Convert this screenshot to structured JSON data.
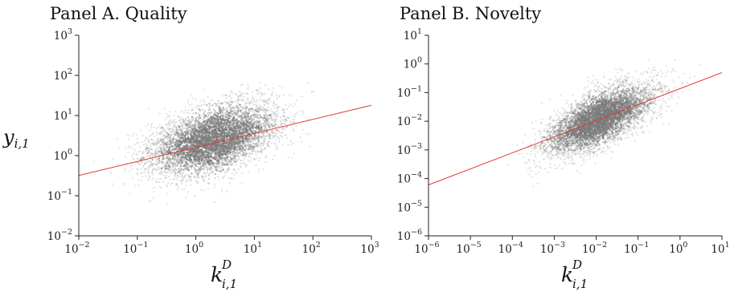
{
  "chart_data": [
    {
      "type": "scatter",
      "title": "Panel A. Quality",
      "ylabel": {
        "base": "y",
        "sub": "i,1"
      },
      "xlabel": {
        "base": "k",
        "sup": "D",
        "sub": "i,1"
      },
      "x_scale": "log",
      "y_scale": "log",
      "xlim": [
        0.01,
        1000
      ],
      "ylim": [
        0.01,
        1000
      ],
      "x_ticks": [
        {
          "base": "10",
          "exp": "−2",
          "value": 0.01
        },
        {
          "base": "10",
          "exp": "−1",
          "value": 0.1
        },
        {
          "base": "10",
          "exp": "0",
          "value": 1
        },
        {
          "base": "10",
          "exp": "1",
          "value": 10
        },
        {
          "base": "10",
          "exp": "2",
          "value": 100
        },
        {
          "base": "10",
          "exp": "3",
          "value": 1000
        }
      ],
      "y_ticks": [
        {
          "base": "10",
          "exp": "−2",
          "value": 0.01
        },
        {
          "base": "10",
          "exp": "−1",
          "value": 0.1
        },
        {
          "base": "10",
          "exp": "0",
          "value": 1
        },
        {
          "base": "10",
          "exp": "1",
          "value": 10
        },
        {
          "base": "10",
          "exp": "2",
          "value": 100
        },
        {
          "base": "10",
          "exp": "3",
          "value": 1000
        }
      ],
      "point_cloud": {
        "center_x": 2.0,
        "center_y": 2.5,
        "spread_log_x": 0.55,
        "spread_log_y": 0.45,
        "correlation": 0.45,
        "color": "#7a7a7a"
      },
      "fit_line": {
        "x": [
          0.01,
          1000
        ],
        "y": [
          0.32,
          18
        ],
        "color": "#e03a2f"
      }
    },
    {
      "type": "scatter",
      "title": "Panel B. Novelty",
      "xlabel": {
        "base": "k",
        "sup": "D",
        "sub": "i,1"
      },
      "x_scale": "log",
      "y_scale": "log",
      "xlim": [
        1e-06,
        10
      ],
      "ylim": [
        1e-06,
        10
      ],
      "x_ticks": [
        {
          "base": "10",
          "exp": "−6",
          "value": 1e-06
        },
        {
          "base": "10",
          "exp": "−5",
          "value": 1e-05
        },
        {
          "base": "10",
          "exp": "−4",
          "value": 0.0001
        },
        {
          "base": "10",
          "exp": "−3",
          "value": 0.001
        },
        {
          "base": "10",
          "exp": "−2",
          "value": 0.01
        },
        {
          "base": "10",
          "exp": "−1",
          "value": 0.1
        },
        {
          "base": "10",
          "exp": "0",
          "value": 1
        },
        {
          "base": "10",
          "exp": "1",
          "value": 10
        }
      ],
      "y_ticks": [
        {
          "base": "10",
          "exp": "−6",
          "value": 1e-06
        },
        {
          "base": "10",
          "exp": "−5",
          "value": 1e-05
        },
        {
          "base": "10",
          "exp": "−4",
          "value": 0.0001
        },
        {
          "base": "10",
          "exp": "−3",
          "value": 0.001
        },
        {
          "base": "10",
          "exp": "−2",
          "value": 0.01
        },
        {
          "base": "10",
          "exp": "−1",
          "value": 0.1
        },
        {
          "base": "10",
          "exp": "0",
          "value": 1
        },
        {
          "base": "10",
          "exp": "1",
          "value": 10
        }
      ],
      "point_cloud": {
        "center_x": 0.012,
        "center_y": 0.012,
        "spread_log_x": 0.62,
        "spread_log_y": 0.6,
        "correlation": 0.65,
        "color": "#7a7a7a"
      },
      "fit_line": {
        "x": [
          1e-06,
          10
        ],
        "y": [
          6e-05,
          0.5
        ],
        "color": "#e03a2f"
      }
    }
  ]
}
